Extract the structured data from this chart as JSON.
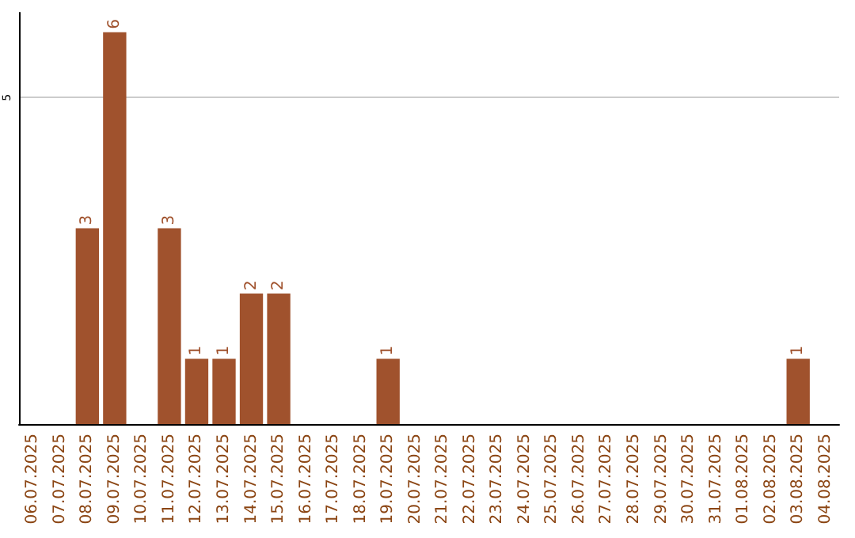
{
  "chart_data": {
    "type": "bar",
    "categories": [
      "06.07.2025",
      "07.07.2025",
      "08.07.2025",
      "09.07.2025",
      "10.07.2025",
      "11.07.2025",
      "12.07.2025",
      "13.07.2025",
      "14.07.2025",
      "15.07.2025",
      "16.07.2025",
      "17.07.2025",
      "18.07.2025",
      "19.07.2025",
      "20.07.2025",
      "21.07.2025",
      "22.07.2025",
      "23.07.2025",
      "24.07.2025",
      "25.07.2025",
      "26.07.2025",
      "27.07.2025",
      "28.07.2025",
      "29.07.2025",
      "30.07.2025",
      "31.07.2025",
      "01.08.2025",
      "02.08.2025",
      "03.08.2025",
      "04.08.2025"
    ],
    "values": [
      0,
      0,
      3,
      6,
      0,
      3,
      1,
      1,
      2,
      2,
      0,
      0,
      0,
      1,
      0,
      0,
      0,
      0,
      0,
      0,
      0,
      0,
      0,
      0,
      0,
      0,
      0,
      0,
      1,
      0
    ],
    "value_labels": [
      null,
      null,
      "3",
      "6",
      null,
      "3",
      "1",
      "1",
      "2",
      "2",
      null,
      null,
      null,
      "1",
      null,
      null,
      null,
      null,
      null,
      null,
      null,
      null,
      null,
      null,
      null,
      null,
      null,
      null,
      "1",
      null
    ],
    "color": "#a0522d",
    "ylim": [
      0,
      6.3
    ],
    "yticks": [
      5
    ],
    "grid": "y"
  }
}
